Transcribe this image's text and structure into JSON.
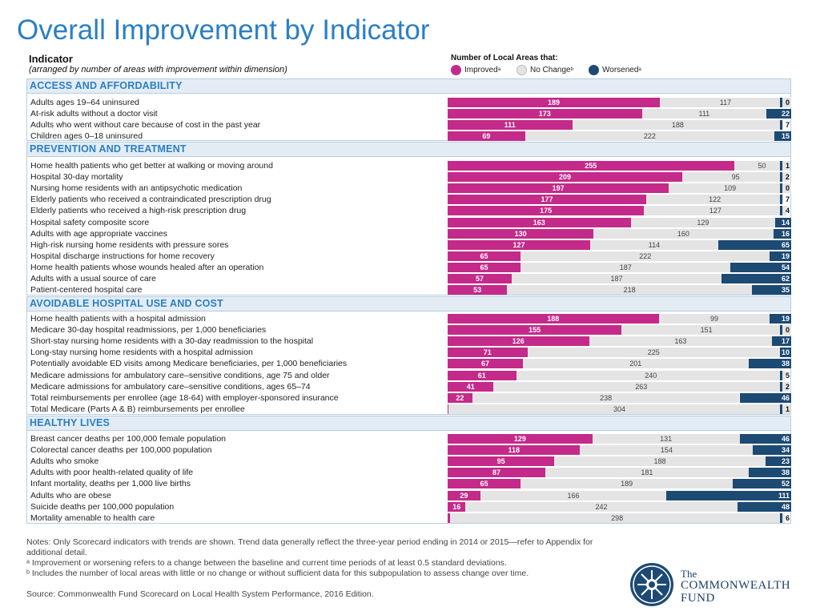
{
  "title": "Overall Improvement by Indicator",
  "indicator_header": "Indicator",
  "indicator_subheader": "(arranged by number of areas with improvement within dimension)",
  "legend": {
    "title": "Number of Local Areas that:",
    "items": [
      {
        "label": "Improved",
        "sup": "a",
        "color": "#c42a8a"
      },
      {
        "label": "No Change",
        "sup": "b",
        "color": "#e4e4e4"
      },
      {
        "label": "Worsened",
        "sup": "a",
        "color": "#1d4a73"
      }
    ]
  },
  "chart_data": {
    "type": "stacked-bar-horizontal",
    "series_names": [
      "Improved",
      "No Change",
      "Worsened"
    ],
    "total_areas": 306,
    "sections": [
      {
        "name": "ACCESS AND AFFORDABILITY",
        "rows": [
          {
            "label": "Adults ages 19–64 uninsured",
            "improved": 189,
            "no_change": 117,
            "worsened": 0
          },
          {
            "label": "At-risk adults without a doctor visit",
            "improved": 173,
            "no_change": 111,
            "worsened": 22
          },
          {
            "label": "Adults who went without care because of cost in the past year",
            "improved": 111,
            "no_change": 188,
            "worsened": 7
          },
          {
            "label": "Children ages 0–18 uninsured",
            "improved": 69,
            "no_change": 222,
            "worsened": 15
          }
        ]
      },
      {
        "name": "PREVENTION AND TREATMENT",
        "rows": [
          {
            "label": "Home health patients who get better at walking or moving around",
            "improved": 255,
            "no_change": 50,
            "worsened": 1
          },
          {
            "label": "Hospital 30-day mortality",
            "improved": 209,
            "no_change": 95,
            "worsened": 2
          },
          {
            "label": "Nursing home residents with an antipsychotic medication",
            "improved": 197,
            "no_change": 109,
            "worsened": 0
          },
          {
            "label": "Elderly patients who received a contraindicated prescription drug",
            "improved": 177,
            "no_change": 122,
            "worsened": 7
          },
          {
            "label": "Elderly patients who received a high-risk prescription drug",
            "improved": 175,
            "no_change": 127,
            "worsened": 4
          },
          {
            "label": "Hospital safety composite score",
            "improved": 163,
            "no_change": 129,
            "worsened": 14
          },
          {
            "label": "Adults with age appropriate vaccines",
            "improved": 130,
            "no_change": 160,
            "worsened": 16
          },
          {
            "label": "High-risk nursing home residents with pressure sores",
            "improved": 127,
            "no_change": 114,
            "worsened": 65
          },
          {
            "label": "Hospital discharge instructions for home recovery",
            "improved": 65,
            "no_change": 222,
            "worsened": 19
          },
          {
            "label": "Home health patients whose wounds healed after an operation",
            "improved": 65,
            "no_change": 187,
            "worsened": 54
          },
          {
            "label": "Adults with a usual source of care",
            "improved": 57,
            "no_change": 187,
            "worsened": 62
          },
          {
            "label": "Patient-centered hospital care",
            "improved": 53,
            "no_change": 218,
            "worsened": 35
          }
        ]
      },
      {
        "name": "AVOIDABLE HOSPITAL USE AND COST",
        "rows": [
          {
            "label": "Home health patients with a hospital admission",
            "improved": 188,
            "no_change": 99,
            "worsened": 19
          },
          {
            "label": "Medicare 30-day hospital readmissions, per 1,000 beneficiaries",
            "improved": 155,
            "no_change": 151,
            "worsened": 0
          },
          {
            "label": "Short-stay nursing home residents with a 30-day readmission to the hospital",
            "improved": 126,
            "no_change": 163,
            "worsened": 17
          },
          {
            "label": "Long-stay nursing home residents with a hospital admission",
            "improved": 71,
            "no_change": 225,
            "worsened": 10
          },
          {
            "label": "Potentially avoidable ED visits among Medicare beneficiaries, per 1,000 beneficiaries",
            "improved": 67,
            "no_change": 201,
            "worsened": 38
          },
          {
            "label": "Medicare admissions for ambulatory care–sensitive conditions, age 75 and older",
            "improved": 61,
            "no_change": 240,
            "worsened": 5
          },
          {
            "label": "Medicare admissions for ambulatory care–sensitive conditions, ages 65–74",
            "improved": 41,
            "no_change": 263,
            "worsened": 2
          },
          {
            "label": "Total reimbursements per enrollee (age 18-64) with employer-sponsored insurance",
            "improved": 22,
            "no_change": 238,
            "worsened": 46
          },
          {
            "label": "Total Medicare (Parts A & B) reimbursements per enrollee",
            "improved": 1,
            "no_change": 304,
            "worsened": 1
          }
        ]
      },
      {
        "name": "HEALTHY LIVES",
        "rows": [
          {
            "label": "Breast cancer deaths per 100,000 female population",
            "improved": 129,
            "no_change": 131,
            "worsened": 46
          },
          {
            "label": "Colorectal cancer deaths per 100,000 population",
            "improved": 118,
            "no_change": 154,
            "worsened": 34
          },
          {
            "label": "Adults who smoke",
            "improved": 95,
            "no_change": 188,
            "worsened": 23
          },
          {
            "label": "Adults with poor health-related quality of life",
            "improved": 87,
            "no_change": 181,
            "worsened": 38
          },
          {
            "label": "Infant mortality, deaths per 1,000 live births",
            "improved": 65,
            "no_change": 189,
            "worsened": 52
          },
          {
            "label": "Adults who are obese",
            "improved": 29,
            "no_change": 166,
            "worsened": 111
          },
          {
            "label": "Suicide deaths per 100,000 population",
            "improved": 16,
            "no_change": 242,
            "worsened": 48
          },
          {
            "label": "Mortality amenable to health care",
            "improved": 2,
            "no_change": 298,
            "worsened": 6
          }
        ]
      }
    ]
  },
  "notes": [
    "Notes: Only Scorecard indicators with trends are shown. Trend data generally reflect the three-year period ending in 2014 or 2015—refer to Appendix for additional detail.",
    "ᵃ Improvement or worsening refers to a change between the baseline and current time periods of at least 0.5 standard deviations.",
    "ᵇ Includes the number of local areas with little or no change or without sufficient data for this subpopulation to assess change over time."
  ],
  "source": "Source: Commonwealth Fund Scorecard on Local Health System Performance, 2016 Edition.",
  "logo": {
    "line1": "The",
    "line2": "COMMONWEALTH",
    "line3": "FUND"
  }
}
